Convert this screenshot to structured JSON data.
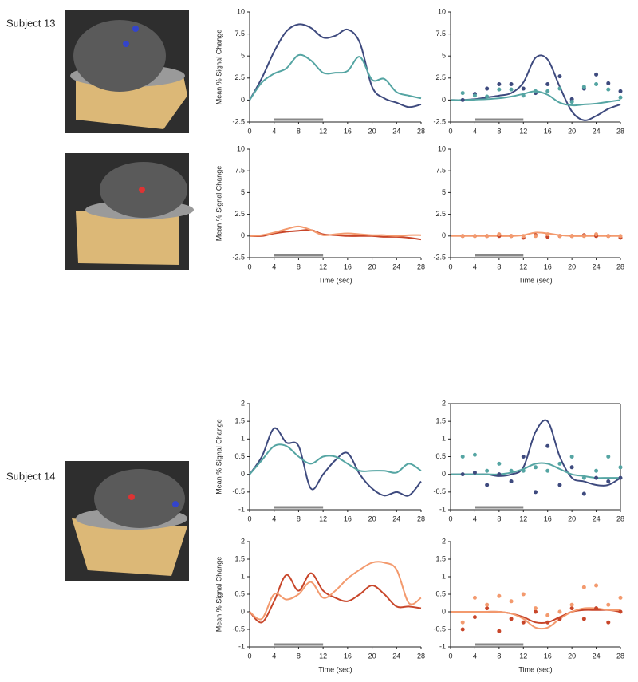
{
  "subjects": [
    "Subject 13",
    "Subject 14"
  ],
  "chart_data": [
    {
      "type": "line",
      "x": [
        0,
        2,
        4,
        6,
        8,
        10,
        12,
        14,
        16,
        18,
        20,
        22,
        24,
        26,
        28
      ],
      "ylim": [
        -2.5,
        10
      ],
      "yticks": [
        -2.5,
        0,
        2.5,
        5,
        7.5,
        10
      ],
      "xlim": [
        0,
        28
      ],
      "xticks": [
        0,
        4,
        8,
        12,
        16,
        20,
        24,
        28
      ],
      "ylabel": "Mean % Signal Change",
      "stimulus": [
        4,
        12
      ],
      "series": [
        {
          "style": "line",
          "color": "#3e4a7e",
          "values": [
            0,
            2.5,
            5.5,
            7.8,
            8.6,
            8.2,
            7.1,
            7.3,
            8.0,
            6.5,
            1.5,
            0.2,
            -0.3,
            -0.8,
            -0.5
          ]
        },
        {
          "style": "line",
          "color": "#55a5a3",
          "values": [
            0,
            2.0,
            3.0,
            3.6,
            5.1,
            4.5,
            3.1,
            3.1,
            3.3,
            4.9,
            2.3,
            2.4,
            0.9,
            0.5,
            0.2
          ]
        }
      ]
    },
    {
      "type": "line",
      "x": [
        0,
        2,
        4,
        6,
        8,
        10,
        12,
        14,
        16,
        18,
        20,
        22,
        24,
        26,
        28
      ],
      "ylim": [
        -2.5,
        10
      ],
      "yticks": [
        -2.5,
        0,
        2.5,
        5,
        7.5,
        10
      ],
      "xlim": [
        0,
        28
      ],
      "xticks": [
        0,
        4,
        8,
        12,
        16,
        20,
        24,
        28
      ],
      "stimulus": [
        4,
        12
      ],
      "series": [
        {
          "style": "line",
          "color": "#3e4a7e",
          "values": [
            0,
            0,
            0.1,
            0.3,
            0.5,
            0.8,
            2.0,
            4.8,
            4.6,
            1.5,
            -1.3,
            -2.3,
            -1.8,
            -1.0,
            -0.5
          ]
        },
        {
          "style": "line",
          "color": "#55a5a3",
          "values": [
            0,
            0,
            0.05,
            0.1,
            0.2,
            0.4,
            0.7,
            1.0,
            0.6,
            -0.3,
            -0.6,
            -0.5,
            -0.4,
            -0.2,
            0
          ]
        },
        {
          "style": "points",
          "color": "#3e4a7e",
          "values": [
            null,
            0,
            0.7,
            1.3,
            1.8,
            1.8,
            1.3,
            0.8,
            1.8,
            2.7,
            0.1,
            1.3,
            2.9,
            1.9,
            1.0
          ]
        },
        {
          "style": "points",
          "color": "#55a5a3",
          "values": [
            null,
            0.8,
            0.5,
            0.4,
            1.2,
            1.2,
            0.5,
            1.0,
            1.0,
            1.3,
            -0.2,
            1.5,
            1.8,
            1.2,
            0.3
          ]
        }
      ]
    },
    {
      "type": "line",
      "x": [
        0,
        2,
        4,
        6,
        8,
        10,
        12,
        14,
        16,
        18,
        20,
        22,
        24,
        26,
        28
      ],
      "ylim": [
        -2.5,
        10
      ],
      "yticks": [
        -2.5,
        0,
        2.5,
        5,
        7.5,
        10
      ],
      "xlim": [
        0,
        28
      ],
      "xticks": [
        0,
        4,
        8,
        12,
        16,
        20,
        24,
        28
      ],
      "ylabel": "Mean % Signal Change",
      "xlabel": "Time (sec)",
      "stimulus": [
        4,
        12
      ],
      "series": [
        {
          "style": "line",
          "color": "#c8462a",
          "values": [
            0,
            0,
            0.3,
            0.5,
            0.6,
            0.7,
            0.2,
            0.1,
            0,
            0,
            0,
            -0.1,
            -0.1,
            -0.2,
            -0.4
          ]
        },
        {
          "style": "line",
          "color": "#f39a6e",
          "values": [
            0,
            0.1,
            0.4,
            0.8,
            1.1,
            0.7,
            0.1,
            0.2,
            0.3,
            0.2,
            0.1,
            0.1,
            0,
            0.1,
            0.1
          ]
        }
      ]
    },
    {
      "type": "line",
      "x": [
        0,
        2,
        4,
        6,
        8,
        10,
        12,
        14,
        16,
        18,
        20,
        22,
        24,
        26,
        28
      ],
      "ylim": [
        -2.5,
        10
      ],
      "yticks": [
        -2.5,
        0,
        2.5,
        5,
        7.5,
        10
      ],
      "xlim": [
        0,
        28
      ],
      "xticks": [
        0,
        4,
        8,
        12,
        16,
        20,
        24,
        28
      ],
      "xlabel": "Time (sec)",
      "stimulus": [
        4,
        12
      ],
      "series": [
        {
          "style": "line",
          "color": "#f39a6e",
          "values": [
            0,
            0,
            0,
            0,
            0,
            0,
            0.1,
            0.4,
            0.3,
            0.1,
            0,
            0,
            0,
            0,
            0
          ]
        },
        {
          "style": "points",
          "color": "#c8462a",
          "values": [
            null,
            0,
            0,
            0,
            0,
            0,
            -0.2,
            0.1,
            -0.1,
            0,
            0,
            0.1,
            0,
            0,
            -0.2
          ]
        },
        {
          "style": "points",
          "color": "#f39a6e",
          "values": [
            null,
            0,
            0,
            0,
            0.2,
            0,
            0,
            0,
            0.2,
            0,
            0,
            0,
            0.2,
            0,
            0
          ]
        }
      ]
    },
    {
      "type": "line",
      "x": [
        0,
        2,
        4,
        6,
        8,
        10,
        12,
        14,
        16,
        18,
        20,
        22,
        24,
        26,
        28
      ],
      "ylim": [
        -1,
        2
      ],
      "yticks": [
        -1,
        -0.5,
        0,
        0.5,
        1,
        1.5,
        2
      ],
      "xlim": [
        0,
        28
      ],
      "xticks": [
        0,
        4,
        8,
        12,
        16,
        20,
        24,
        28
      ],
      "ylabel": "Mean % Signal Change",
      "stimulus": [
        4,
        12
      ],
      "series": [
        {
          "style": "line",
          "color": "#3e4a7e",
          "values": [
            0,
            0.5,
            1.3,
            0.9,
            0.8,
            -0.4,
            0,
            0.4,
            0.6,
            0,
            -0.4,
            -0.6,
            -0.5,
            -0.6,
            -0.2
          ]
        },
        {
          "style": "line",
          "color": "#55a5a3",
          "values": [
            0,
            0.4,
            0.8,
            0.8,
            0.5,
            0.3,
            0.5,
            0.5,
            0.3,
            0.1,
            0.1,
            0.1,
            0.05,
            0.3,
            0.1
          ]
        }
      ]
    },
    {
      "type": "line",
      "x": [
        0,
        2,
        4,
        6,
        8,
        10,
        12,
        14,
        16,
        18,
        20,
        22,
        24,
        26,
        28
      ],
      "ylim": [
        -1,
        2
      ],
      "yticks": [
        -1,
        -0.5,
        0,
        0.5,
        1,
        1.5,
        2
      ],
      "xlim": [
        0,
        28
      ],
      "xticks": [
        0,
        4,
        8,
        12,
        16,
        20,
        24,
        28
      ],
      "stimulus": [
        4,
        12
      ],
      "frame": true,
      "series": [
        {
          "style": "line",
          "color": "#3e4a7e",
          "values": [
            0,
            0,
            0,
            0,
            -0.05,
            0,
            0.2,
            1.2,
            1.5,
            0.5,
            -0.1,
            -0.2,
            -0.3,
            -0.3,
            -0.1
          ]
        },
        {
          "style": "line",
          "color": "#55a5a3",
          "values": [
            0,
            0,
            0,
            0,
            0,
            0.05,
            0.15,
            0.3,
            0.3,
            0.15,
            0,
            -0.05,
            -0.1,
            -0.1,
            -0.1
          ]
        },
        {
          "style": "points",
          "color": "#3e4a7e",
          "values": [
            null,
            0,
            0.05,
            -0.3,
            0,
            -0.2,
            0.5,
            -0.5,
            0.8,
            -0.3,
            0.2,
            -0.55,
            -0.1,
            -0.2,
            -0.1
          ]
        },
        {
          "style": "points",
          "color": "#55a5a3",
          "values": [
            null,
            0.5,
            0.55,
            0.1,
            0.3,
            0.1,
            0.1,
            0.2,
            0.1,
            0.3,
            0.5,
            -0.1,
            0.1,
            0.5,
            0.2
          ]
        }
      ]
    },
    {
      "type": "line",
      "x": [
        0,
        2,
        4,
        6,
        8,
        10,
        12,
        14,
        16,
        18,
        20,
        22,
        24,
        26,
        28
      ],
      "ylim": [
        -1,
        2
      ],
      "yticks": [
        -1,
        -0.5,
        0,
        0.5,
        1,
        1.5,
        2
      ],
      "xlim": [
        0,
        28
      ],
      "xticks": [
        0,
        4,
        8,
        12,
        16,
        20,
        24,
        28
      ],
      "ylabel": "Mean % Signal Change",
      "xlabel": "Time (sec)",
      "stimulus": [
        4,
        12
      ],
      "series": [
        {
          "style": "line",
          "color": "#c8462a",
          "values": [
            0,
            -0.3,
            0.3,
            1.05,
            0.6,
            1.1,
            0.6,
            0.4,
            0.3,
            0.5,
            0.75,
            0.5,
            0.15,
            0.15,
            0.1
          ]
        },
        {
          "style": "line",
          "color": "#f39a6e",
          "values": [
            0,
            -0.2,
            0.5,
            0.35,
            0.5,
            0.85,
            0.4,
            0.6,
            0.95,
            1.2,
            1.4,
            1.4,
            1.2,
            0.25,
            0.4
          ]
        }
      ]
    },
    {
      "type": "line",
      "x": [
        0,
        2,
        4,
        6,
        8,
        10,
        12,
        14,
        16,
        18,
        20,
        22,
        24,
        26,
        28
      ],
      "ylim": [
        -1,
        2
      ],
      "yticks": [
        -1,
        -0.5,
        0,
        0.5,
        1,
        1.5,
        2
      ],
      "xlim": [
        0,
        28
      ],
      "xticks": [
        0,
        4,
        8,
        12,
        16,
        20,
        24,
        28
      ],
      "xlabel": "Time (sec)",
      "stimulus": [
        4,
        12
      ],
      "series": [
        {
          "style": "line",
          "color": "#c8462a",
          "values": [
            0,
            0,
            0,
            0,
            0,
            -0.05,
            -0.15,
            -0.3,
            -0.3,
            -0.15,
            0,
            0.05,
            0.05,
            0.05,
            0
          ]
        },
        {
          "style": "line",
          "color": "#f39a6e",
          "values": [
            0,
            0,
            0,
            0,
            0,
            -0.05,
            -0.2,
            -0.45,
            -0.45,
            -0.2,
            0,
            0.1,
            0.1,
            0.05,
            0.05
          ]
        },
        {
          "style": "points",
          "color": "#c8462a",
          "values": [
            null,
            -0.5,
            -0.15,
            0.1,
            -0.55,
            -0.2,
            -0.3,
            0,
            -0.3,
            -0.2,
            0.1,
            -0.2,
            0.1,
            -0.3,
            0
          ]
        },
        {
          "style": "points",
          "color": "#f39a6e",
          "values": [
            null,
            -0.3,
            0.4,
            0.2,
            0.45,
            0.3,
            0.5,
            0.1,
            -0.1,
            0,
            0.2,
            0.7,
            0.75,
            0.2,
            0.4
          ]
        }
      ]
    }
  ]
}
